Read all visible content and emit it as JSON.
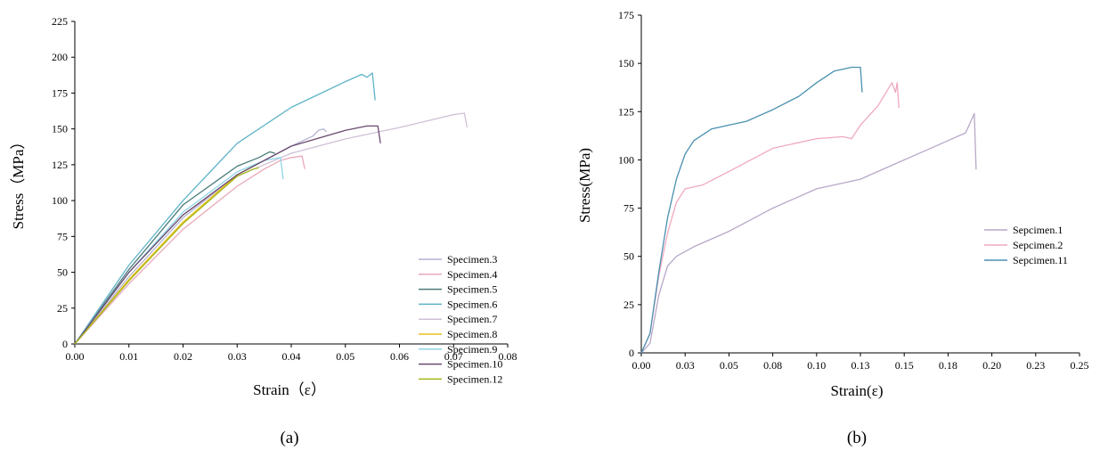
{
  "chart_data": [
    {
      "type": "line",
      "caption": "(a)",
      "xlabel": "Strain（ε）",
      "ylabel": "Stress（MPa）",
      "xlim": [
        0,
        0.08
      ],
      "ylim": [
        0,
        225
      ],
      "xticks": [
        "0.00",
        "0.01",
        "0.02",
        "0.03",
        "0.04",
        "0.05",
        "0.06",
        "0.07",
        "0.08"
      ],
      "yticks": [
        "0",
        "25",
        "50",
        "75",
        "100",
        "125",
        "150",
        "175",
        "200",
        "225"
      ],
      "legend_position": "right",
      "series": [
        {
          "name": "Specimen.3",
          "color": "#b4b4d2",
          "points": [
            [
              0,
              0
            ],
            [
              0.01,
              47
            ],
            [
              0.02,
              88
            ],
            [
              0.03,
              118
            ],
            [
              0.04,
              138
            ],
            [
              0.044,
              145
            ],
            [
              0.045,
              149
            ],
            [
              0.046,
              150
            ],
            [
              0.0465,
              148
            ]
          ]
        },
        {
          "name": "Specimen.4",
          "color": "#e8a8b8",
          "points": [
            [
              0,
              0
            ],
            [
              0.01,
              42
            ],
            [
              0.02,
              80
            ],
            [
              0.03,
              110
            ],
            [
              0.035,
              122
            ],
            [
              0.038,
              128
            ],
            [
              0.04,
              130
            ],
            [
              0.042,
              131
            ],
            [
              0.0425,
              122
            ]
          ]
        },
        {
          "name": "Specimen.5",
          "color": "#4a7a7a",
          "points": [
            [
              0,
              0
            ],
            [
              0.01,
              52
            ],
            [
              0.02,
              97
            ],
            [
              0.03,
              124
            ],
            [
              0.034,
              130
            ],
            [
              0.036,
              134
            ],
            [
              0.037,
              133
            ]
          ]
        },
        {
          "name": "Specimen.6",
          "color": "#5fb3c8",
          "points": [
            [
              0,
              0
            ],
            [
              0.01,
              55
            ],
            [
              0.02,
              100
            ],
            [
              0.03,
              140
            ],
            [
              0.04,
              165
            ],
            [
              0.05,
              183
            ],
            [
              0.053,
              188
            ],
            [
              0.054,
              186
            ],
            [
              0.055,
              189
            ],
            [
              0.0555,
              170
            ]
          ]
        },
        {
          "name": "Specimen.7",
          "color": "#cfc0d8",
          "points": [
            [
              0,
              0
            ],
            [
              0.01,
              50
            ],
            [
              0.02,
              90
            ],
            [
              0.03,
              117
            ],
            [
              0.04,
              133
            ],
            [
              0.05,
              143
            ],
            [
              0.06,
              151
            ],
            [
              0.07,
              160
            ],
            [
              0.072,
              161
            ],
            [
              0.0725,
              151
            ]
          ]
        },
        {
          "name": "Specimen.8",
          "color": "#e8c020",
          "points": [
            [
              0,
              0
            ],
            [
              0.01,
              45
            ],
            [
              0.02,
              85
            ],
            [
              0.03,
              118
            ],
            [
              0.033,
              124
            ],
            [
              0.034,
              126
            ]
          ]
        },
        {
          "name": "Specimen.9",
          "color": "#8fd6e8",
          "points": [
            [
              0,
              0
            ],
            [
              0.01,
              50
            ],
            [
              0.02,
              92
            ],
            [
              0.03,
              120
            ],
            [
              0.035,
              128
            ],
            [
              0.038,
              130
            ],
            [
              0.0385,
              115
            ]
          ]
        },
        {
          "name": "Specimen.10",
          "color": "#6a4a70",
          "points": [
            [
              0,
              0
            ],
            [
              0.01,
              50
            ],
            [
              0.02,
              90
            ],
            [
              0.03,
              118
            ],
            [
              0.04,
              138
            ],
            [
              0.05,
              149
            ],
            [
              0.054,
              152
            ],
            [
              0.056,
              152
            ],
            [
              0.0565,
              140
            ]
          ]
        },
        {
          "name": "Specimen.12",
          "color": "#a7b818",
          "points": [
            [
              0,
              0
            ],
            [
              0.01,
              44
            ],
            [
              0.02,
              84
            ],
            [
              0.03,
              117
            ],
            [
              0.033,
              122
            ],
            [
              0.034,
              123
            ]
          ]
        }
      ]
    },
    {
      "type": "line",
      "caption": "(b)",
      "xlabel": "Strain(ε)",
      "ylabel": "Stress(MPa)",
      "xlim": [
        0,
        0.25
      ],
      "ylim": [
        0,
        175
      ],
      "xticks": [
        "0.00",
        "0.03",
        "0.05",
        "0.08",
        "0.10",
        "0.13",
        "0.15",
        "0.18",
        "0.20",
        "0.23",
        "0.25"
      ],
      "yticks": [
        "0",
        "25",
        "50",
        "75",
        "100",
        "125",
        "150",
        "175"
      ],
      "legend_position": "right",
      "series": [
        {
          "name": "Sepcimen.1",
          "color": "#b8a8c8",
          "points": [
            [
              0,
              0
            ],
            [
              0.005,
              5
            ],
            [
              0.01,
              30
            ],
            [
              0.015,
              45
            ],
            [
              0.02,
              50
            ],
            [
              0.03,
              55
            ],
            [
              0.05,
              63
            ],
            [
              0.075,
              75
            ],
            [
              0.1,
              85
            ],
            [
              0.125,
              90
            ],
            [
              0.15,
              100
            ],
            [
              0.175,
              110
            ],
            [
              0.185,
              114
            ],
            [
              0.19,
              124
            ],
            [
              0.191,
              95
            ]
          ]
        },
        {
          "name": "Sepcimen.2",
          "color": "#f0a8c0",
          "points": [
            [
              0,
              0
            ],
            [
              0.005,
              10
            ],
            [
              0.01,
              40
            ],
            [
              0.015,
              62
            ],
            [
              0.02,
              78
            ],
            [
              0.025,
              85
            ],
            [
              0.035,
              87
            ],
            [
              0.05,
              94
            ],
            [
              0.075,
              106
            ],
            [
              0.1,
              111
            ],
            [
              0.115,
              112
            ],
            [
              0.12,
              111
            ],
            [
              0.125,
              118
            ],
            [
              0.135,
              128
            ],
            [
              0.143,
              140
            ],
            [
              0.145,
              135
            ],
            [
              0.146,
              140
            ],
            [
              0.147,
              127
            ]
          ]
        },
        {
          "name": "Sepcimen.11",
          "color": "#4a90b0",
          "points": [
            [
              0,
              0
            ],
            [
              0.005,
              10
            ],
            [
              0.01,
              42
            ],
            [
              0.015,
              70
            ],
            [
              0.02,
              90
            ],
            [
              0.025,
              103
            ],
            [
              0.03,
              110
            ],
            [
              0.04,
              116
            ],
            [
              0.05,
              118
            ],
            [
              0.06,
              120
            ],
            [
              0.075,
              126
            ],
            [
              0.09,
              133
            ],
            [
              0.1,
              140
            ],
            [
              0.11,
              146
            ],
            [
              0.12,
              148
            ],
            [
              0.125,
              148
            ],
            [
              0.126,
              135
            ]
          ]
        }
      ]
    }
  ]
}
